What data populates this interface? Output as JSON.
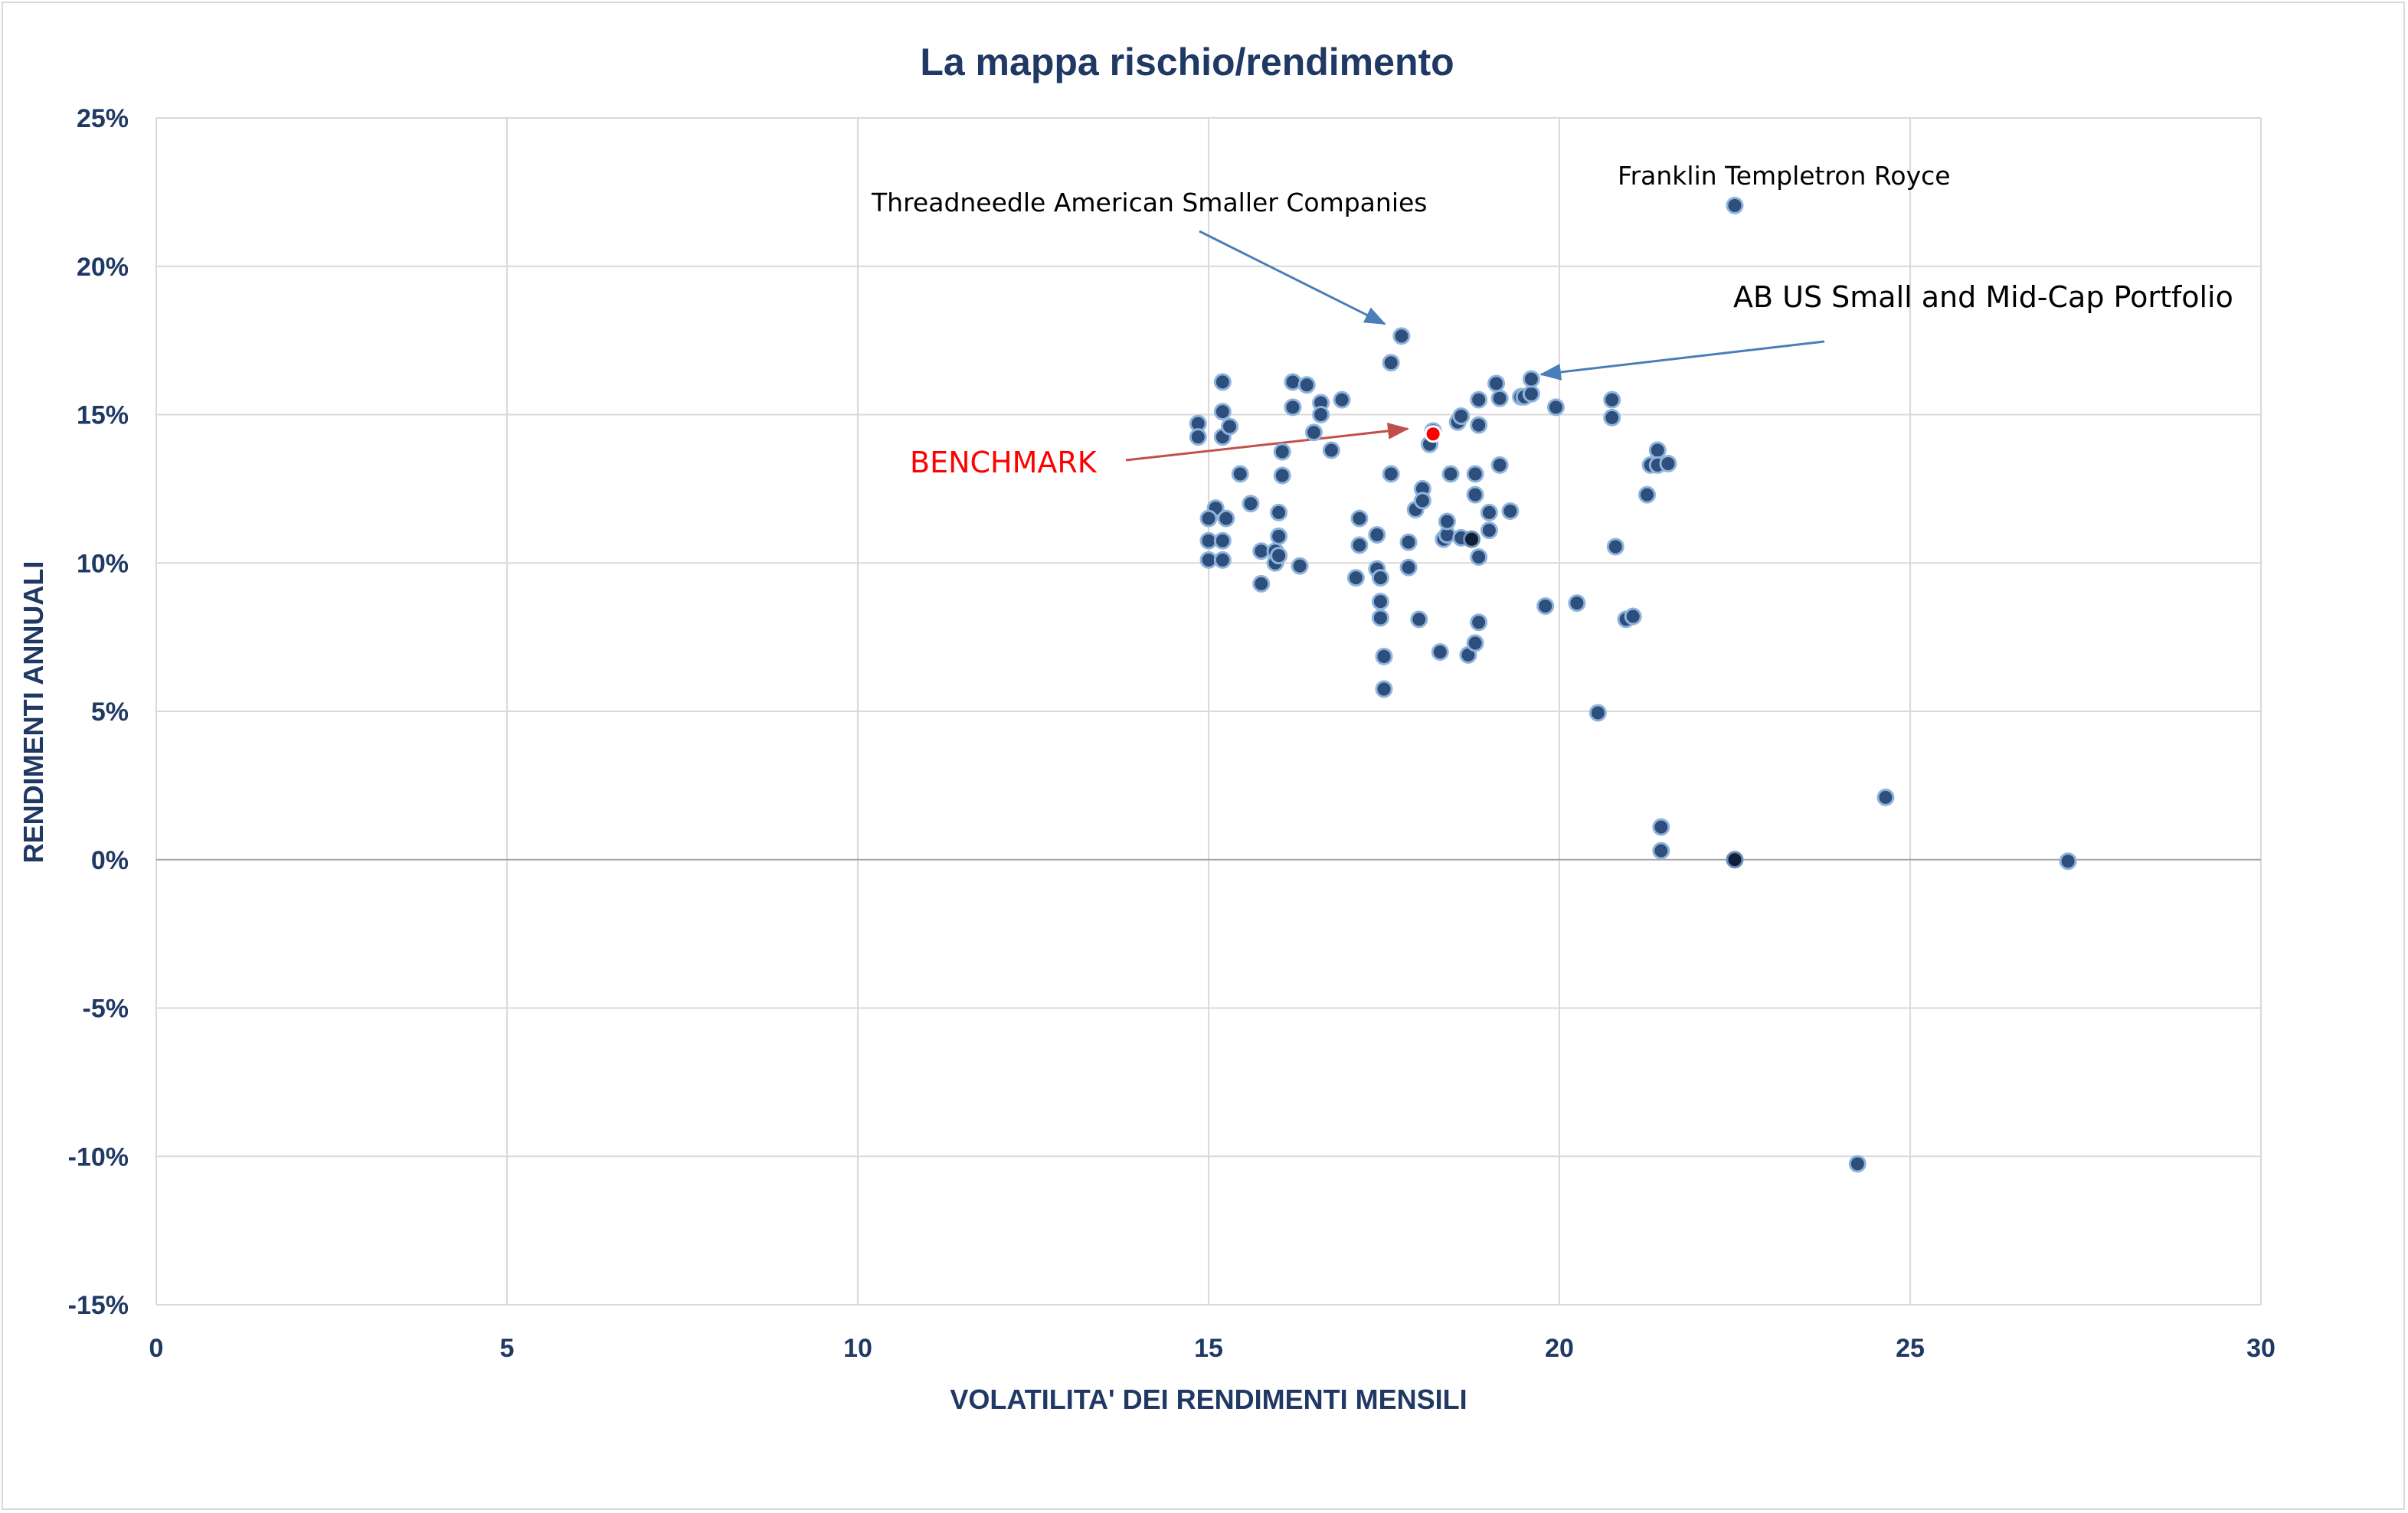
{
  "chart_data": {
    "type": "scatter",
    "title": "La mappa rischio/rendimento",
    "xlabel": "VOLATILITA' DEI RENDIMENTI MENSILI",
    "ylabel": "RENDIMENTI ANNUALI",
    "xlim": [
      0,
      30
    ],
    "ylim": [
      -15,
      25
    ],
    "x_ticks": [
      0,
      5,
      10,
      15,
      20,
      25,
      30
    ],
    "y_ticks": [
      -15,
      -10,
      -5,
      0,
      5,
      10,
      15,
      20,
      25
    ],
    "x_tick_labels": [
      "0",
      "5",
      "10",
      "15",
      "20",
      "25",
      "30"
    ],
    "y_tick_labels": [
      "-15%",
      "-10%",
      "-5%",
      "0%",
      "5%",
      "10%",
      "15%",
      "20%",
      "25%"
    ],
    "grid": true,
    "legend": "none",
    "colors": {
      "point_fill": "#2e4f7c",
      "point_stroke": "#8fb4dc",
      "benchmark": "#ff0000",
      "dark_point": "#0e1f3a",
      "axis_text": "#1f3864",
      "arrow_blue": "#4a7ebb",
      "arrow_red": "#c0504d"
    },
    "series": [
      {
        "points": [
          [
            14.85,
            14.7
          ],
          [
            14.85,
            14.25
          ],
          [
            15.2,
            16.1
          ],
          [
            15.2,
            15.1
          ],
          [
            15.2,
            14.25
          ],
          [
            15.3,
            14.6
          ],
          [
            15.1,
            11.85
          ],
          [
            15.0,
            11.5
          ],
          [
            15.25,
            11.5
          ],
          [
            15.0,
            10.75
          ],
          [
            15.2,
            10.75
          ],
          [
            15.0,
            10.1
          ],
          [
            15.2,
            10.1
          ],
          [
            15.45,
            13.0
          ],
          [
            15.6,
            12.0
          ],
          [
            15.75,
            10.4
          ],
          [
            15.75,
            9.3
          ],
          [
            15.95,
            10.4
          ],
          [
            15.95,
            10.0
          ],
          [
            16.0,
            10.25
          ],
          [
            16.0,
            10.9
          ],
          [
            16.0,
            11.7
          ],
          [
            16.05,
            12.95
          ],
          [
            16.05,
            13.75
          ],
          [
            16.2,
            16.1
          ],
          [
            16.2,
            15.25
          ],
          [
            16.4,
            16.0
          ],
          [
            16.3,
            9.9
          ],
          [
            16.5,
            14.4
          ],
          [
            16.6,
            15.4
          ],
          [
            16.6,
            15.0
          ],
          [
            16.75,
            13.8
          ],
          [
            16.9,
            15.5
          ],
          [
            17.15,
            11.5
          ],
          [
            17.15,
            10.6
          ],
          [
            17.1,
            9.5
          ],
          [
            17.4,
            10.95
          ],
          [
            17.4,
            9.8
          ],
          [
            17.45,
            9.5
          ],
          [
            17.45,
            8.7
          ],
          [
            17.45,
            8.15
          ],
          [
            17.5,
            6.85
          ],
          [
            17.5,
            5.75
          ],
          [
            17.6,
            13.0
          ],
          [
            17.6,
            16.75
          ],
          [
            17.75,
            17.65
          ],
          [
            17.85,
            10.7
          ],
          [
            17.85,
            9.85
          ],
          [
            17.95,
            11.8
          ],
          [
            18.05,
            12.5
          ],
          [
            18.05,
            12.1
          ],
          [
            18.15,
            14.0
          ],
          [
            18.2,
            14.45
          ],
          [
            18.0,
            8.1
          ],
          [
            18.3,
            7.0
          ],
          [
            18.35,
            10.8
          ],
          [
            18.4,
            10.95
          ],
          [
            18.4,
            11.4
          ],
          [
            18.45,
            13.0
          ],
          [
            18.55,
            14.75
          ],
          [
            18.6,
            14.95
          ],
          [
            18.6,
            10.85
          ],
          [
            18.7,
            6.9
          ],
          [
            18.8,
            13.0
          ],
          [
            18.8,
            12.3
          ],
          [
            18.8,
            7.3
          ],
          [
            18.85,
            10.2
          ],
          [
            18.85,
            8.0
          ],
          [
            18.85,
            15.5
          ],
          [
            18.85,
            14.65
          ],
          [
            19.0,
            11.7
          ],
          [
            19.0,
            11.1
          ],
          [
            19.1,
            16.05
          ],
          [
            19.15,
            15.55
          ],
          [
            19.15,
            13.3
          ],
          [
            19.3,
            11.75
          ],
          [
            19.45,
            15.6
          ],
          [
            19.5,
            15.6
          ],
          [
            19.6,
            15.7
          ],
          [
            19.6,
            16.2
          ],
          [
            19.8,
            8.55
          ],
          [
            19.95,
            15.25
          ],
          [
            20.25,
            8.65
          ],
          [
            20.55,
            4.95
          ],
          [
            20.75,
            14.9
          ],
          [
            20.75,
            15.5
          ],
          [
            20.8,
            10.55
          ],
          [
            20.95,
            8.1
          ],
          [
            21.05,
            8.2
          ],
          [
            21.25,
            12.3
          ],
          [
            21.3,
            13.3
          ],
          [
            21.4,
            13.8
          ],
          [
            21.4,
            13.3
          ],
          [
            21.55,
            13.35
          ],
          [
            21.45,
            1.1
          ],
          [
            21.45,
            0.3
          ],
          [
            24.65,
            2.1
          ],
          [
            27.25,
            -0.05
          ],
          [
            24.25,
            -10.25
          ],
          [
            22.5,
            22.05
          ]
        ]
      },
      {
        "points": [
          [
            18.75,
            10.8
          ],
          [
            22.5,
            0.0
          ]
        ]
      },
      {
        "points": [
          [
            18.2,
            14.35
          ]
        ]
      }
    ]
  },
  "annotations": {
    "threadneedle": "Threadneedle American Smaller Companies",
    "franklin": "Franklin Templetron Royce",
    "ab": "AB US Small and Mid-Cap Portfolio",
    "benchmark": "BENCHMARK"
  }
}
